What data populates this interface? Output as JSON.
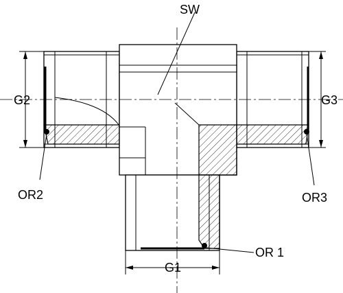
{
  "labels": {
    "sw": "SW",
    "g1": "G1",
    "g2": "G2",
    "g3": "G3",
    "or1": "OR 1",
    "or2": "OR2",
    "or3": "OR3"
  },
  "colors": {
    "line": "#000000",
    "background": "#ffffff"
  }
}
